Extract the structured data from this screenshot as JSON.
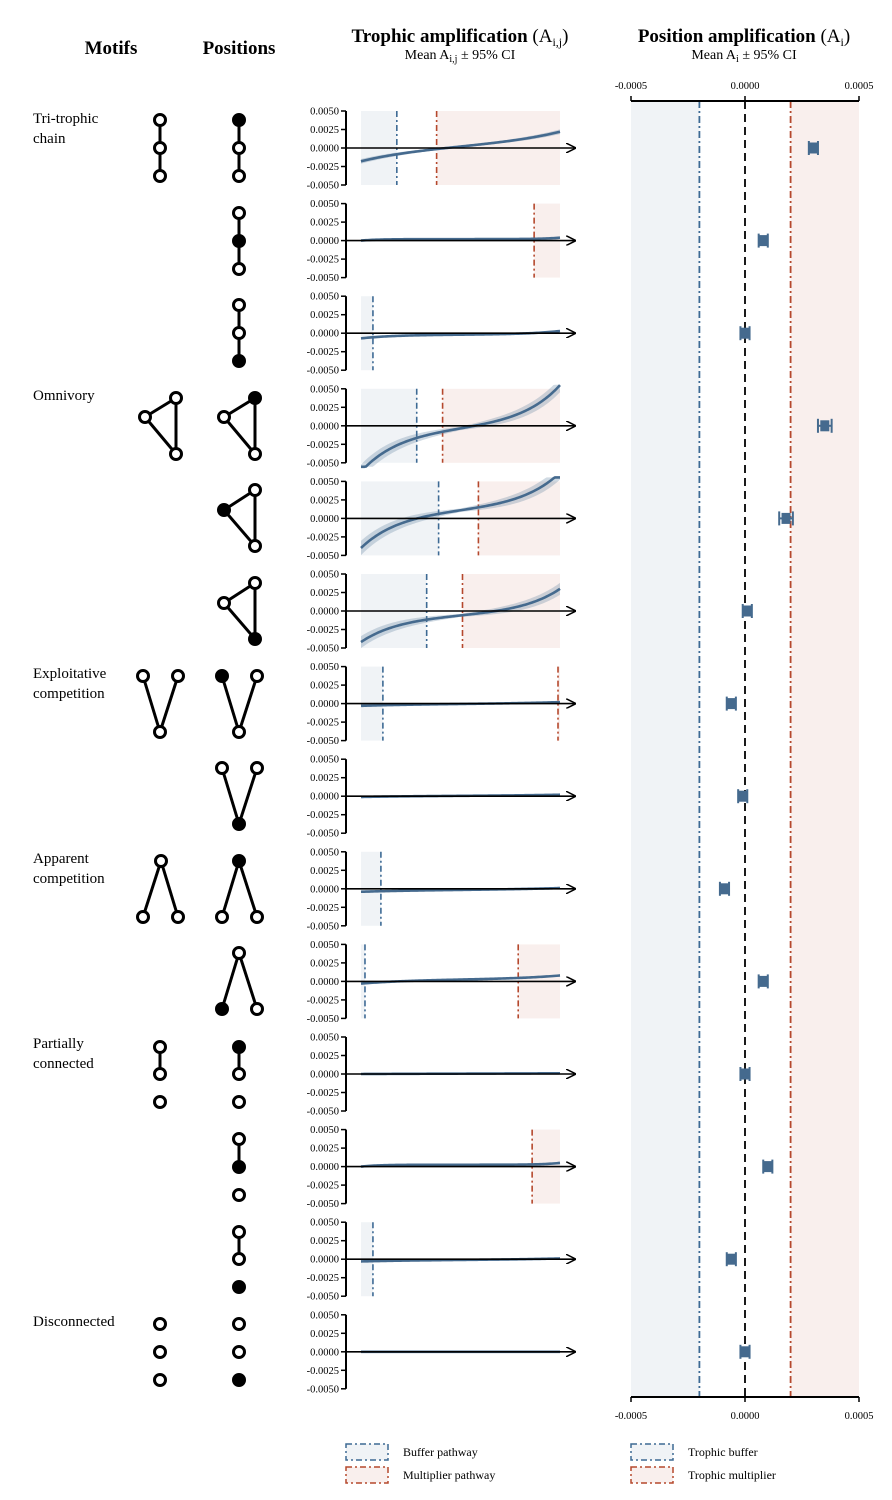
{
  "headers": {
    "motifs": "Motifs",
    "positions": "Positions",
    "trophic_title": "Trophic amplification",
    "trophic_symbol": "A",
    "trophic_subscript": "i,j",
    "trophic_subtitle_pre": "Mean A",
    "trophic_subtitle_post": " ± 95% CI",
    "position_title": "Position amplification",
    "position_symbol": "A",
    "position_subscript": "i",
    "position_subtitle_pre": "Mean A",
    "position_subtitle_post": " ± 95% CI"
  },
  "motifs": [
    {
      "label": [
        "Tri-trophic",
        "chain"
      ],
      "icon": "chain-icon"
    },
    {
      "label": [
        "Omnivory"
      ],
      "icon": "omnivory-icon"
    },
    {
      "label": [
        "Exploitative",
        "competition"
      ],
      "icon": "v-icon"
    },
    {
      "label": [
        "Apparent",
        "competition"
      ],
      "icon": "lambda-icon"
    },
    {
      "label": [
        "Partially",
        "connected"
      ],
      "icon": "partial-icon"
    },
    {
      "label": [
        "Disconnected"
      ],
      "icon": "disconnected-icon"
    }
  ],
  "legend_left": [
    {
      "label": "Buffer pathway",
      "color": "#3d6a94"
    },
    {
      "label": "Multiplier pathway",
      "color": "#b5482d"
    }
  ],
  "legend_right": [
    {
      "label": "Trophic buffer",
      "color": "#3d6a94"
    },
    {
      "label": "Trophic multiplier",
      "color": "#b5482d"
    }
  ],
  "colors": {
    "series": "#456a8e",
    "buffer": "#3d6a94",
    "multiplier": "#b5482d",
    "buffer_fill": "#f0f3f6",
    "multiplier_fill": "#f9efed"
  },
  "chart_data": [
    {
      "type": "line",
      "panel": "trophic-amplification",
      "yticks": [
        "0.0050",
        "0.0025",
        "0.0000",
        "-0.0025",
        "-0.0050"
      ],
      "ylim": [
        -0.005,
        0.005
      ],
      "rows": [
        {
          "motif": "Tri-trophic chain",
          "position_icon": "chain-top",
          "start": -0.0018,
          "end": 0.0022,
          "shape": 1.5,
          "ci": 0.0002,
          "buffer_end": 0.18,
          "mult_start": 0.38
        },
        {
          "motif": "Tri-trophic chain",
          "position_icon": "chain-middle",
          "start": 0.0,
          "end": 0.0004,
          "shape": 6,
          "ci": 0.0001,
          "buffer_end": null,
          "mult_start": 0.87
        },
        {
          "motif": "Tri-trophic chain",
          "position_icon": "chain-bottom",
          "start": -0.0007,
          "end": 0.0003,
          "shape": 3,
          "ci": 0.0001,
          "buffer_end": 0.06,
          "mult_start": null
        },
        {
          "motif": "Omnivory",
          "position_icon": "omnivory-top",
          "start": -0.0062,
          "end": 0.0055,
          "shape": 2.5,
          "ci": 0.0006,
          "buffer_end": 0.28,
          "mult_start": 0.41
        },
        {
          "motif": "Omnivory",
          "position_icon": "omnivory-left",
          "start": -0.004,
          "end": 0.0062,
          "shape": 2.5,
          "ci": 0.0006,
          "buffer_end": 0.39,
          "mult_start": 0.59
        },
        {
          "motif": "Omnivory",
          "position_icon": "omnivory-bottom",
          "start": -0.0042,
          "end": 0.003,
          "shape": 2.5,
          "ci": 0.0005,
          "buffer_end": 0.33,
          "mult_start": 0.51
        },
        {
          "motif": "Exploitative competition",
          "position_icon": "v-left",
          "start": -0.0003,
          "end": 0.0002,
          "shape": 1.5,
          "ci": 0.0001,
          "buffer_end": 0.11,
          "mult_start": 0.99
        },
        {
          "motif": "Exploitative competition",
          "position_icon": "v-bottom",
          "start": -0.0001,
          "end": 0.0002,
          "shape": 1.5,
          "ci": 0.0001,
          "buffer_end": null,
          "mult_start": null
        },
        {
          "motif": "Apparent competition",
          "position_icon": "lambda-top",
          "start": -0.0004,
          "end": 0.0001,
          "shape": 1.5,
          "ci": 0.0001,
          "buffer_end": 0.1,
          "mult_start": null
        },
        {
          "motif": "Apparent competition",
          "position_icon": "lambda-left",
          "start": -0.0003,
          "end": 0.0008,
          "shape": 2,
          "ci": 0.0001,
          "buffer_end": 0.02,
          "mult_start": 0.79
        },
        {
          "motif": "Partially connected",
          "position_icon": "partial-top",
          "start": 0.0,
          "end": 0.0001,
          "shape": 1,
          "ci": 5e-05,
          "buffer_end": null,
          "mult_start": null
        },
        {
          "motif": "Partially connected",
          "position_icon": "partial-middle",
          "start": 0.0,
          "end": 0.0005,
          "shape": 6,
          "ci": 0.0001,
          "buffer_end": null,
          "mult_start": 0.86
        },
        {
          "motif": "Partially connected",
          "position_icon": "partial-bottom",
          "start": -0.0003,
          "end": 0.0001,
          "shape": 1.5,
          "ci": 0.0001,
          "buffer_end": 0.06,
          "mult_start": null
        },
        {
          "motif": "Disconnected",
          "position_icon": "disconnected-bottom",
          "start": 0.0,
          "end": 0.0,
          "shape": 1,
          "ci": 3e-05,
          "buffer_end": null,
          "mult_start": null
        }
      ]
    },
    {
      "type": "scatter",
      "panel": "position-amplification",
      "xticks": [
        "-0.0005",
        "0.0000",
        "0.0005"
      ],
      "xlim": [
        -0.0005,
        0.0005
      ],
      "trophic_buffer": -0.0002,
      "trophic_multiplier": 0.0002,
      "points": [
        {
          "mean": 0.0003,
          "ci": 2e-05
        },
        {
          "mean": 8e-05,
          "ci": 2e-05
        },
        {
          "mean": 0.0,
          "ci": 2e-05
        },
        {
          "mean": 0.00035,
          "ci": 3e-05
        },
        {
          "mean": 0.00018,
          "ci": 3e-05
        },
        {
          "mean": 1e-05,
          "ci": 2e-05
        },
        {
          "mean": -6e-05,
          "ci": 2e-05
        },
        {
          "mean": -1e-05,
          "ci": 2e-05
        },
        {
          "mean": -9e-05,
          "ci": 2e-05
        },
        {
          "mean": 8e-05,
          "ci": 2e-05
        },
        {
          "mean": 0.0,
          "ci": 2e-05
        },
        {
          "mean": 0.0001,
          "ci": 2e-05
        },
        {
          "mean": -6e-05,
          "ci": 2e-05
        },
        {
          "mean": 0.0,
          "ci": 2e-05
        }
      ]
    }
  ]
}
